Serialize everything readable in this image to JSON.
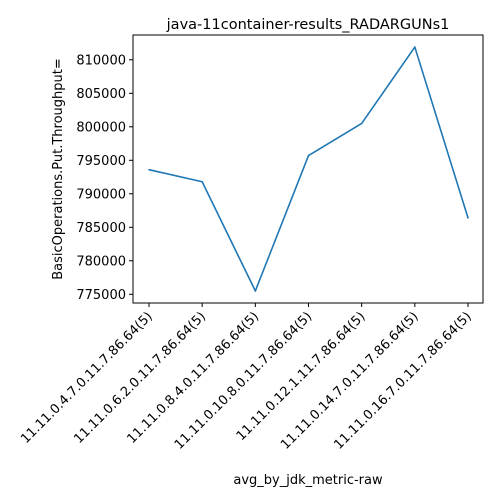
{
  "chart_data": {
    "type": "line",
    "title": "java-11container-results_RADARGUNs1",
    "xlabel": "avg_by_jdk_metric-raw",
    "ylabel": "BasicOperations.Put.Throughput=",
    "categories": [
      "11.11.0.4.7.0.11.7.86.64(5)",
      "11.11.0.6.2.0.11.7.86.64(5)",
      "11.11.0.8.4.0.11.7.86.64(5)",
      "11.11.0.10.8.0.11.7.86.64(5)",
      "11.11.0.12.1.11.7.86.64(5)",
      "11.11.0.14.7.0.11.7.86.64(5)",
      "11.11.0.16.7.0.11.7.86.64(5)"
    ],
    "series": [
      {
        "values": [
          793600,
          791800,
          775500,
          795700,
          800500,
          811900,
          786400
        ]
      }
    ],
    "yticks": [
      775000,
      780000,
      785000,
      790000,
      795000,
      800000,
      805000,
      810000
    ],
    "ytick_labels": [
      "775000",
      "780000",
      "785000",
      "790000",
      "795000",
      "800000",
      "805000",
      "810000"
    ],
    "ylim": [
      773700,
      813700
    ],
    "grid": false,
    "line_color": "#1f77b4"
  }
}
